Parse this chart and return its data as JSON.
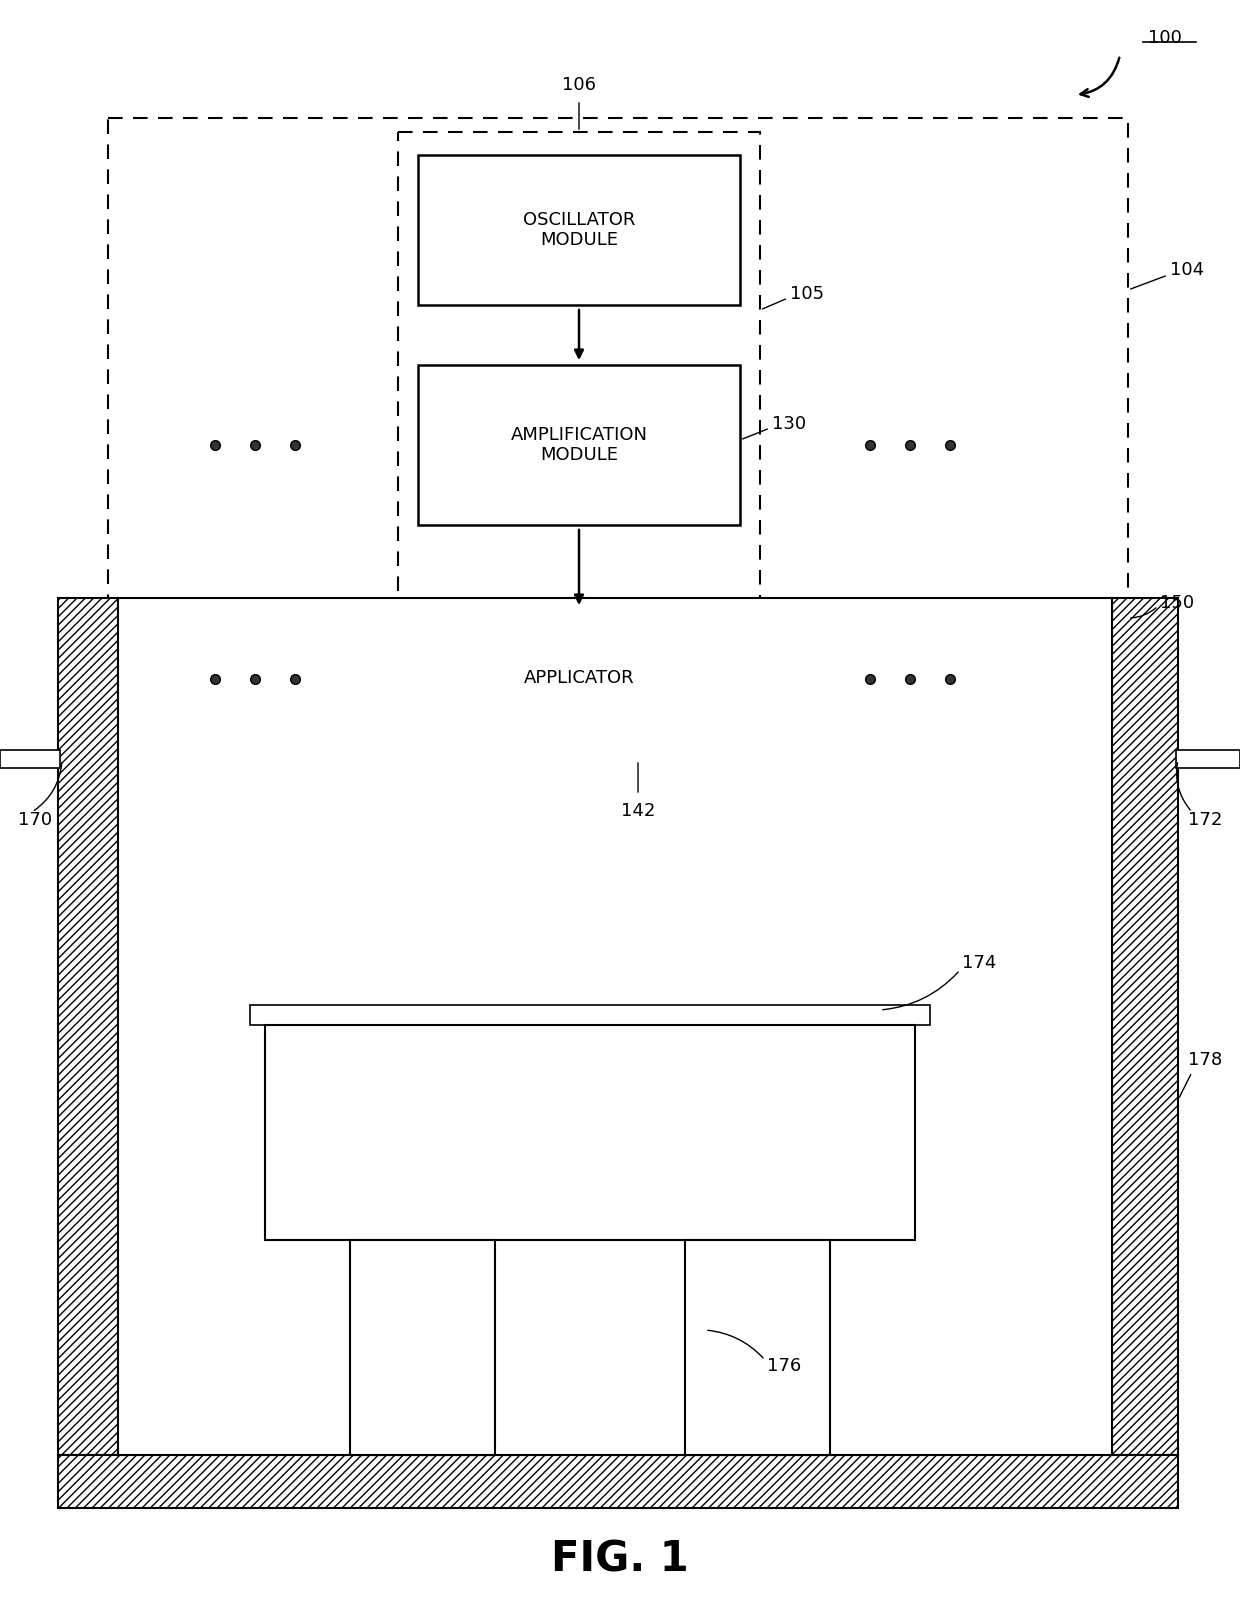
{
  "fig_label": "FIG. 1",
  "ref_100": "100",
  "ref_104": "104",
  "ref_105": "105",
  "ref_106": "106",
  "ref_130": "130",
  "ref_142": "142",
  "ref_150": "150",
  "ref_170": "170",
  "ref_172": "172",
  "ref_174": "174",
  "ref_176": "176",
  "ref_178": "178",
  "osc_label": "OSCILLATOR\nMODULE",
  "amp_label": "AMPLIFICATION\nMODULE",
  "app_label": "APPLICATOR",
  "bg_color": "#ffffff"
}
